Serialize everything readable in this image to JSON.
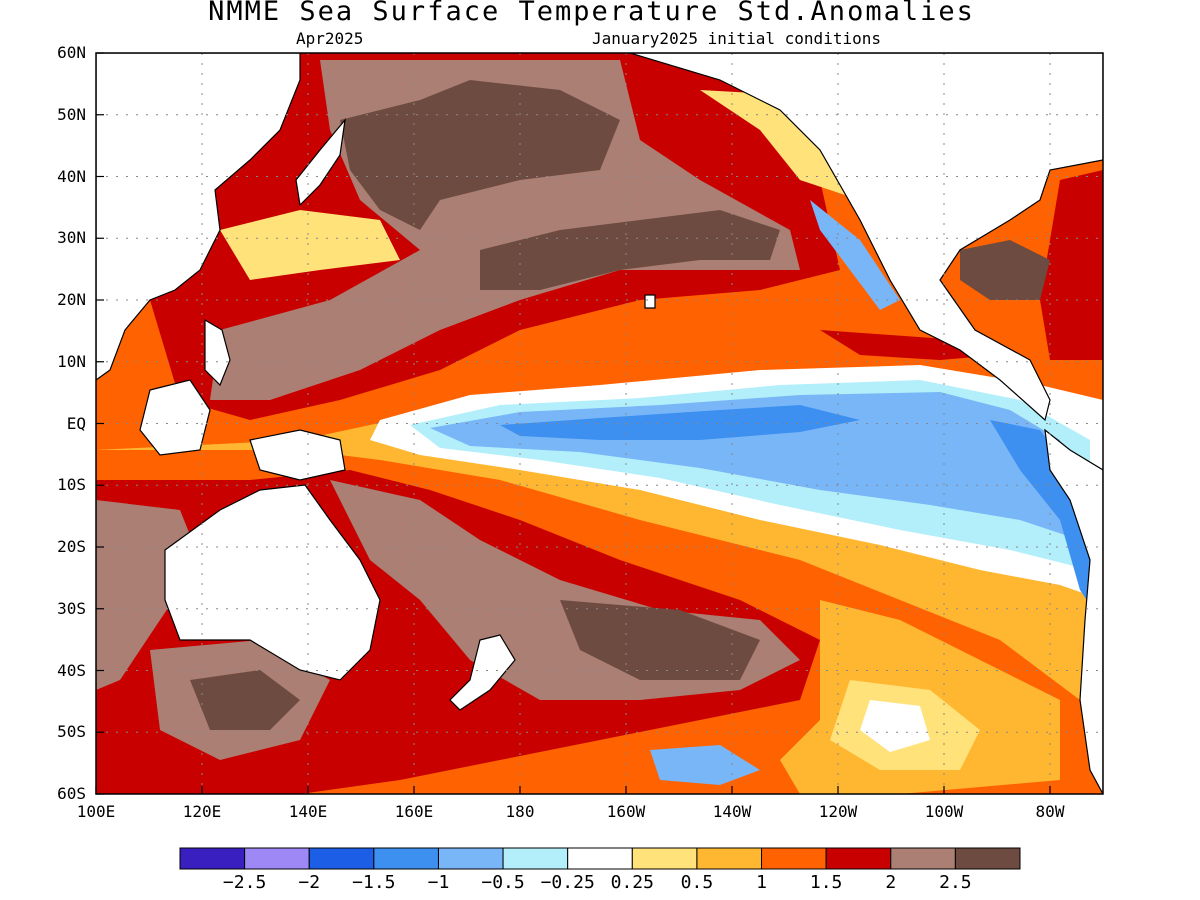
{
  "title": "NMME Sea Surface Temperature Std.Anomalies",
  "subtitle_left": "Apr2025",
  "subtitle_right": "January2025 initial conditions",
  "y_axis": {
    "labels": [
      "60N",
      "50N",
      "40N",
      "30N",
      "20N",
      "10N",
      "EQ",
      "10S",
      "20S",
      "30S",
      "40S",
      "50S",
      "60S"
    ]
  },
  "x_axis": {
    "labels": [
      "100E",
      "120E",
      "140E",
      "160E",
      "180",
      "160W",
      "140W",
      "120W",
      "100W",
      "80W"
    ]
  },
  "colorbar": {
    "colors": [
      "#3a1fc0",
      "#9d88f5",
      "#1c5fe6",
      "#3d90f0",
      "#78b6f7",
      "#b3effa",
      "#ffffff",
      "#ffe27a",
      "#ffb732",
      "#ff6200",
      "#c90000",
      "#ab7f73",
      "#6e4b40"
    ],
    "labels": [
      "-2.5",
      "-2",
      "-1.5",
      "-1",
      "-0.5",
      "-0.25",
      "0.25",
      "0.5",
      "1",
      "1.5",
      "2",
      "2.5"
    ]
  },
  "map": {
    "region": "Pacific Ocean 100E-70W, 60S-60N",
    "pattern": "cold anomaly band along the equatorial central/eastern Pacific; warm anomalies elsewhere"
  }
}
